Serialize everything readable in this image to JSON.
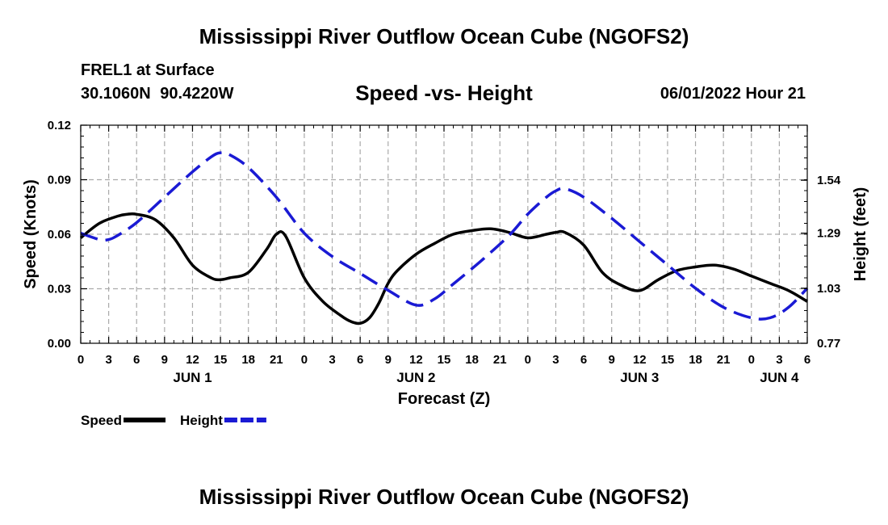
{
  "header": {
    "title": "Mississippi River Outflow Ocean Cube (NGOFS2)",
    "station": "FREL1 at Surface",
    "coordinates": "30.1060N  90.4220W",
    "datetime": "06/01/2022 Hour 21"
  },
  "footer": {
    "title": "Mississippi River Outflow Ocean Cube (NGOFS2)"
  },
  "chart_data": {
    "type": "line",
    "title": "Speed -vs- Height",
    "xlabel": "Forecast (Z)",
    "ylabel": "Speed (Knots)",
    "ylabel_right": "Height (feet)",
    "x_unit": "hours from 00Z Jun 1",
    "xlim": [
      0,
      78
    ],
    "ylim": [
      0,
      0.12
    ],
    "ylim_right": [
      0.77,
      1.8
    ],
    "y_ticks": [
      "0.00",
      "0.03",
      "0.06",
      "0.09",
      "0.12"
    ],
    "y_ticks_right": [
      "0.77",
      "1.03",
      "1.29",
      "1.54"
    ],
    "y_ticks_right_values": [
      0.77,
      1.03,
      1.29,
      1.54
    ],
    "x_tick_labels": [
      "0",
      "3",
      "6",
      "9",
      "12",
      "15",
      "18",
      "21",
      "0",
      "3",
      "6",
      "9",
      "12",
      "15",
      "18",
      "21",
      "0",
      "3",
      "6",
      "9",
      "12",
      "15",
      "18",
      "21",
      "0",
      "3",
      "6"
    ],
    "day_labels": [
      {
        "label": "JUN 1",
        "x": 12
      },
      {
        "label": "JUN 2",
        "x": 36
      },
      {
        "label": "JUN 3",
        "x": 60
      },
      {
        "label": "JUN 4",
        "x": 75
      }
    ],
    "grid": true,
    "legend": {
      "position": "bottom-left",
      "entries": [
        {
          "label": "Speed",
          "color": "#000000",
          "style": "solid"
        },
        {
          "label": "Height",
          "color": "#1a1ad4",
          "style": "dashed"
        }
      ]
    },
    "series": [
      {
        "name": "Speed",
        "axis": "left",
        "color": "#000000",
        "style": "solid",
        "x": [
          0,
          2,
          4,
          5,
          6,
          8,
          10,
          12,
          14,
          15,
          16,
          18,
          20,
          21,
          22,
          24,
          26,
          28,
          29,
          30,
          31,
          32,
          33,
          34,
          36,
          38,
          40,
          42,
          44,
          46,
          48,
          50,
          51,
          52,
          54,
          56,
          58,
          60,
          62,
          64,
          66,
          68,
          70,
          72,
          74,
          76,
          78
        ],
        "values": [
          0.058,
          0.066,
          0.07,
          0.071,
          0.071,
          0.068,
          0.058,
          0.043,
          0.036,
          0.035,
          0.036,
          0.039,
          0.052,
          0.06,
          0.059,
          0.036,
          0.023,
          0.015,
          0.012,
          0.011,
          0.014,
          0.022,
          0.033,
          0.04,
          0.049,
          0.055,
          0.06,
          0.062,
          0.063,
          0.061,
          0.058,
          0.06,
          0.061,
          0.061,
          0.054,
          0.039,
          0.032,
          0.029,
          0.035,
          0.04,
          0.042,
          0.043,
          0.041,
          0.037,
          0.033,
          0.029,
          0.023
        ]
      },
      {
        "name": "Height",
        "axis": "right",
        "color": "#1a1ad4",
        "style": "dashed",
        "x": [
          0,
          2,
          3,
          4,
          6,
          9,
          12,
          14,
          15,
          16,
          18,
          21,
          24,
          27,
          30,
          33,
          36,
          38,
          40,
          43,
          46,
          48,
          50,
          51,
          52,
          54,
          57,
          60,
          63,
          66,
          69,
          72,
          74,
          76,
          78
        ],
        "values": [
          1.29,
          1.26,
          1.26,
          1.28,
          1.34,
          1.46,
          1.58,
          1.65,
          1.67,
          1.66,
          1.6,
          1.46,
          1.29,
          1.18,
          1.1,
          1.02,
          0.95,
          0.98,
          1.05,
          1.16,
          1.28,
          1.38,
          1.46,
          1.49,
          1.5,
          1.46,
          1.36,
          1.25,
          1.14,
          1.03,
          0.94,
          0.89,
          0.89,
          0.94,
          1.03
        ]
      }
    ]
  }
}
